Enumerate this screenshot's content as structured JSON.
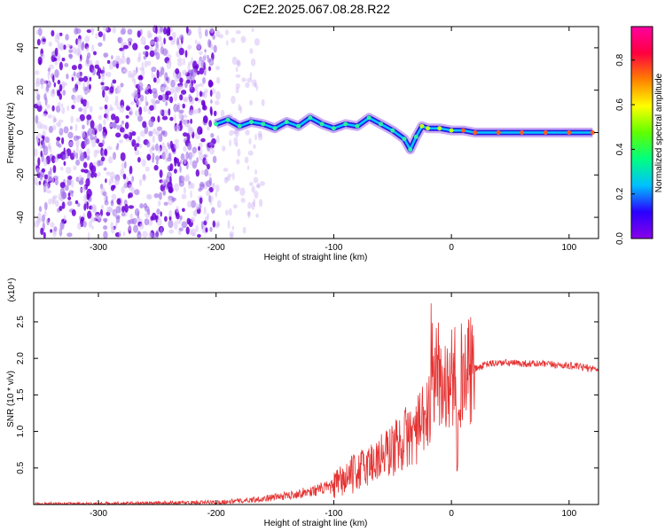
{
  "title": "C2E2.2025.067.08.28.R22",
  "colors": {
    "line": "#e53333",
    "noise": "#6a00d8"
  },
  "chart_data": [
    {
      "type": "heatmap",
      "xlabel": "Height of straight line (km)",
      "ylabel": "Frequency (Hz)",
      "xlim": [
        -355,
        125
      ],
      "ylim": [
        -50,
        50
      ],
      "xticks": [
        -300,
        -200,
        -100,
        0,
        100
      ],
      "yticks": [
        -40,
        -20,
        0,
        20,
        40
      ],
      "colorbar": {
        "label": "Normalized spectral amplitude",
        "range": [
          0,
          0.95
        ],
        "ticks": [
          0.0,
          0.2,
          0.4,
          0.6,
          0.8
        ],
        "stops": [
          "#8a00e8",
          "#2a00ff",
          "#00c0ff",
          "#00ff80",
          "#60ff00",
          "#ffff00",
          "#ff8000",
          "#ff0040",
          "#ff00a0"
        ]
      },
      "trace": {
        "x": [
          -200,
          -190,
          -180,
          -170,
          -160,
          -150,
          -140,
          -130,
          -120,
          -110,
          -100,
          -90,
          -80,
          -70,
          -60,
          -50,
          -40,
          -35,
          -30,
          -25,
          -20,
          -10,
          0,
          10,
          20,
          40,
          60,
          80,
          100,
          120
        ],
        "y": [
          4,
          6,
          3,
          5,
          4,
          2,
          5,
          3,
          7,
          4,
          2,
          4,
          3,
          7,
          4,
          1,
          -3,
          -8,
          -2,
          3,
          2,
          2,
          1,
          1,
          0,
          0,
          0,
          0,
          0,
          0
        ]
      }
    },
    {
      "type": "line",
      "xlabel": "Height of straight line (km)",
      "ylabel": "SNR (10 * v/v)",
      "scale_label": "(x10⁴)",
      "xlim": [
        -355,
        125
      ],
      "ylim": [
        0,
        2.9
      ],
      "xticks": [
        -300,
        -200,
        -100,
        0,
        100
      ],
      "yticks": [
        0.5,
        1.0,
        1.5,
        2.0,
        2.5
      ],
      "series": [
        {
          "x": [
            -355,
            -300,
            -250,
            -200,
            -180,
            -160,
            -140,
            -120,
            -100,
            -90,
            -80,
            -70,
            -60,
            -50,
            -40,
            -30,
            -20,
            -15,
            -10,
            -5,
            0,
            10,
            20,
            30,
            40,
            60,
            80,
            100,
            120
          ],
          "y": [
            0.01,
            0.01,
            0.02,
            0.03,
            0.05,
            0.08,
            0.12,
            0.18,
            0.25,
            0.35,
            0.45,
            0.55,
            0.65,
            0.75,
            0.9,
            1.0,
            1.2,
            1.4,
            1.55,
            1.6,
            1.7,
            1.78,
            1.85,
            1.92,
            1.94,
            1.93,
            1.92,
            1.9,
            1.86
          ]
        }
      ]
    }
  ]
}
